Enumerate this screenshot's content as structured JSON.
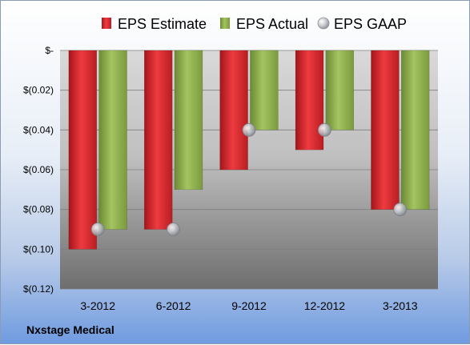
{
  "company": "Nxstage Medical",
  "colors": {
    "estimate": "#e0242b",
    "actual": "#8cb04a",
    "gaap": "#b8bcc2"
  },
  "chart_data": {
    "type": "bar",
    "categories": [
      "3-2012",
      "6-2012",
      "9-2012",
      "12-2012",
      "3-2013"
    ],
    "series": [
      {
        "name": "EPS Estimate",
        "kind": "bar",
        "values": [
          -0.1,
          -0.09,
          -0.06,
          -0.05,
          -0.08
        ]
      },
      {
        "name": "EPS Actual",
        "kind": "bar",
        "values": [
          -0.09,
          -0.07,
          -0.04,
          -0.04,
          -0.08
        ]
      },
      {
        "name": "EPS GAAP",
        "kind": "marker",
        "values": [
          -0.09,
          -0.09,
          -0.04,
          -0.04,
          -0.08
        ]
      }
    ],
    "ylim": [
      -0.12,
      0
    ],
    "yticks": [
      0,
      -0.02,
      -0.04,
      -0.06,
      -0.08,
      -0.1,
      -0.12
    ],
    "ytick_labels": [
      "$-",
      "$(0.02)",
      "$(0.04)",
      "$(0.06)",
      "$(0.08)",
      "$(0.10)",
      "$(0.12)"
    ],
    "grid": true,
    "legend_position": "top"
  }
}
